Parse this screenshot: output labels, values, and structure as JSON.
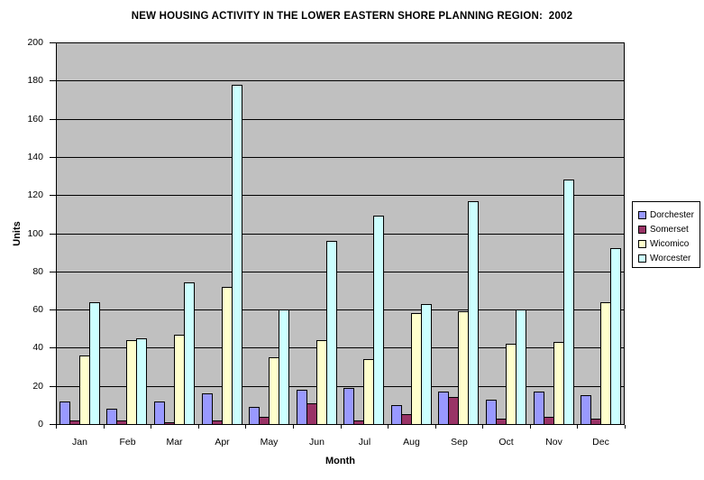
{
  "title": "NEW HOUSING ACTIVITY IN THE LOWER EASTERN SHORE PLANNING REGION:  2002",
  "axes": {
    "x_title": "Month",
    "y_title": "Units"
  },
  "chart_data": {
    "type": "bar",
    "title": "NEW HOUSING ACTIVITY IN THE LOWER EASTERN SHORE PLANNING REGION:  2002",
    "xlabel": "Month",
    "ylabel": "Units",
    "ylim": [
      0,
      200
    ],
    "ytick_step": 20,
    "y_tick_labels": [
      "0",
      "20",
      "40",
      "60",
      "80",
      "100",
      "120",
      "140",
      "160",
      "180",
      "200"
    ],
    "grid": true,
    "legend_position": "right",
    "plot_bg_color": "#C0C0C0",
    "bar_border_color": "#000000",
    "categories": [
      "Jan",
      "Feb",
      "Mar",
      "Apr",
      "May",
      "Jun",
      "Jul",
      "Aug",
      "Sep",
      "Oct",
      "Nov",
      "Dec"
    ],
    "series": [
      {
        "name": "Dorchester",
        "color": "#9999FF",
        "values": [
          12,
          8,
          12,
          16,
          9,
          18,
          19,
          10,
          17,
          13,
          17,
          15
        ]
      },
      {
        "name": "Somerset",
        "color": "#993366",
        "values": [
          2,
          2,
          1,
          2,
          4,
          11,
          2,
          5,
          14,
          3,
          4,
          3
        ]
      },
      {
        "name": "Wicomico",
        "color": "#FFFFCC",
        "values": [
          36,
          44,
          47,
          72,
          35,
          44,
          34,
          58,
          59,
          42,
          43,
          64
        ]
      },
      {
        "name": "Worcester",
        "color": "#CCFFFF",
        "values": [
          64,
          45,
          74,
          178,
          60,
          96,
          109,
          63,
          117,
          60,
          128,
          92
        ]
      }
    ]
  }
}
